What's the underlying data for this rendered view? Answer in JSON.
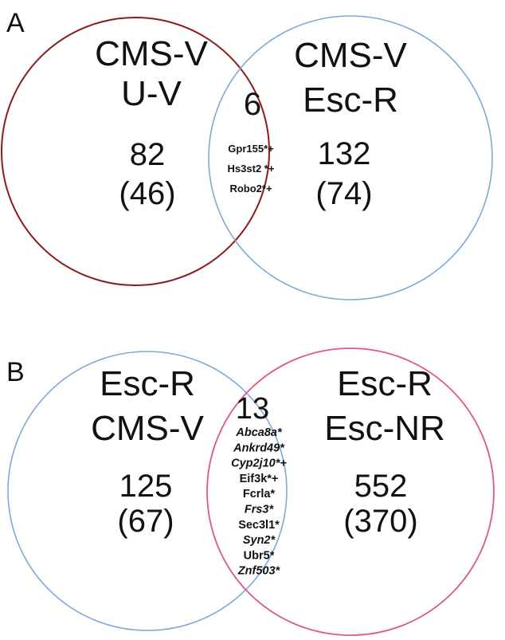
{
  "panels": [
    {
      "label": "A",
      "left": {
        "line1": "CMS-V",
        "line2": "U-V",
        "count": "82",
        "sub": "(46)",
        "color": "#8b1a1a"
      },
      "right": {
        "line1": "CMS-V",
        "line2": "Esc-R",
        "count": "132",
        "sub": "(74)",
        "color": "#7fa8d8"
      },
      "overlap": {
        "count": "6",
        "genes": [
          {
            "name": "Gpr155*+",
            "italic": false
          },
          {
            "name": "Hs3st2 *+",
            "italic": false
          },
          {
            "name": "Robo2*+",
            "italic": false
          }
        ]
      }
    },
    {
      "label": "B",
      "left": {
        "line1": "Esc-R",
        "line2": "CMS-V",
        "count": "125",
        "sub": "(67)",
        "color": "#7fa8d8"
      },
      "right": {
        "line1": "Esc-R",
        "line2": "Esc-NR",
        "count": "552",
        "sub": "(370)",
        "color": "#e0558f"
      },
      "overlap": {
        "count": "13",
        "genes": [
          {
            "name": "Abca8a*",
            "italic": true
          },
          {
            "name": "Ankrd49*",
            "italic": true
          },
          {
            "name": "Cyp2j10*+",
            "italic": true
          },
          {
            "name": "Eif3k*+",
            "italic": false
          },
          {
            "name": "Fcrla*",
            "italic": false
          },
          {
            "name": "Frs3*",
            "italic": true
          },
          {
            "name": "Sec3l1*",
            "italic": false
          },
          {
            "name": "Syn2*",
            "italic": true
          },
          {
            "name": "Ubr5*",
            "italic": false
          },
          {
            "name": "Znf503*",
            "italic": true
          }
        ]
      }
    }
  ]
}
